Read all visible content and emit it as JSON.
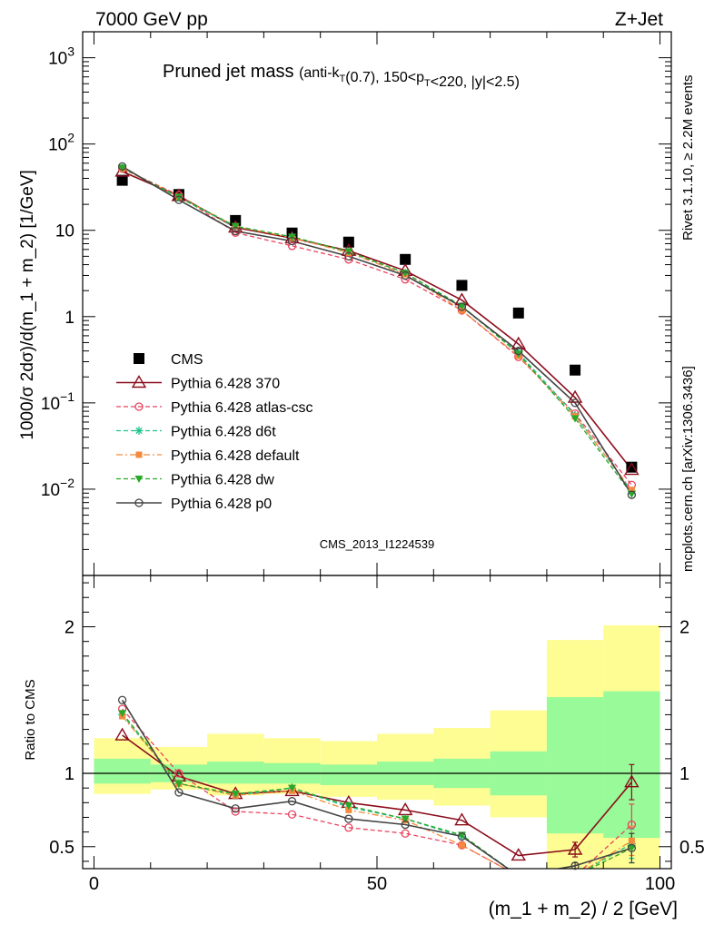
{
  "header": {
    "left": "7000 GeV pp",
    "right": "Z+Jet"
  },
  "title": {
    "main": "Pruned jet mass",
    "sub": "(anti-k_T(0.7), 150<p_T<220, |y|<2.5)"
  },
  "side_labels": {
    "rivet": "Rivet 3.1.10, ≥ 2.2M events",
    "source": "mcplots.cern.ch [arXiv:1306.3436]"
  },
  "watermark": "CMS_2013_I1224539",
  "ratio_label": "Ratio to CMS",
  "colors": {
    "cms": "#000000",
    "p370": "#8b0d1b",
    "atlas": "#e8445f",
    "d6t": "#1fc48a",
    "default": "#f58a3c",
    "dw": "#2aa82a",
    "p0": "#444444",
    "band_inner": "#98fa98",
    "band_outer": "#fdfd94"
  },
  "chart_data": [
    {
      "type": "line",
      "panel": "main",
      "xlim": [
        -2,
        102
      ],
      "ylim": [
        0.001,
        2000
      ],
      "yscale": "log",
      "ylabel": "1000/σ 2dσ)/d(m_1 + m_2) [1/GeV]",
      "yticks": [
        {
          "label": "10^3",
          "base": "10",
          "exp": "3",
          "value": 1000
        },
        {
          "label": "10^2",
          "base": "10",
          "exp": "2",
          "value": 100
        },
        {
          "label": "10",
          "value": 10
        },
        {
          "label": "1",
          "value": 1
        },
        {
          "label": "10^-1",
          "base": "10",
          "exp": "−1",
          "value": 0.1
        },
        {
          "label": "10^-2",
          "base": "10",
          "exp": "−2",
          "value": 0.01
        }
      ],
      "x": [
        5,
        15,
        25,
        35,
        45,
        55,
        65,
        75,
        85,
        95
      ],
      "legend_position": "lower-left",
      "series": [
        {
          "name": "CMS",
          "key": "cms",
          "marker": "square-filled",
          "line": "none",
          "values": [
            38,
            26,
            13,
            9.3,
            7.3,
            4.6,
            2.3,
            1.1,
            0.24,
            0.018
          ]
        },
        {
          "name": "Pythia 6.428 370",
          "key": "p370",
          "marker": "triangle-open",
          "line": "solid",
          "values": [
            48,
            25,
            10.8,
            8.1,
            5.8,
            3.4,
            1.55,
            0.48,
            0.115,
            0.0168
          ]
        },
        {
          "name": "Pythia 6.428 atlas-csc",
          "key": "atlas",
          "marker": "circle-open",
          "line": "dashed",
          "values": [
            52,
            25.5,
            9.4,
            6.6,
            4.6,
            2.7,
            1.18,
            0.34,
            0.075,
            0.0112
          ]
        },
        {
          "name": "Pythia 6.428 d6t",
          "key": "d6t",
          "marker": "star",
          "line": "dashed",
          "values": [
            53,
            24,
            11.0,
            8.4,
            5.6,
            3.2,
            1.3,
            0.38,
            0.072,
            0.0095
          ]
        },
        {
          "name": "Pythia 6.428 default",
          "key": "default",
          "marker": "square-filled-small",
          "line": "dashdot",
          "values": [
            52,
            24.5,
            11.1,
            8.2,
            5.5,
            3.1,
            1.18,
            0.35,
            0.07,
            0.0098
          ]
        },
        {
          "name": "Pythia 6.428 dw",
          "key": "dw",
          "marker": "triangle-down-filled",
          "line": "dashed",
          "values": [
            53,
            24.3,
            11.2,
            8.4,
            5.7,
            3.2,
            1.33,
            0.37,
            0.066,
            0.0088
          ]
        },
        {
          "name": "Pythia 6.428 p0",
          "key": "p0",
          "marker": "circle-open",
          "line": "solid",
          "values": [
            55,
            22.5,
            9.8,
            7.5,
            5.0,
            3.0,
            1.3,
            0.4,
            0.1,
            0.0086
          ]
        }
      ]
    },
    {
      "type": "line",
      "panel": "ratio",
      "xlabel": "(m_1 + m_2) / 2 [GeV]",
      "ylabel": "Ratio to CMS",
      "xlim": [
        -2,
        102
      ],
      "ylim": [
        0.35,
        2.35
      ],
      "xticks": [
        0,
        50,
        100
      ],
      "yticks": [
        0.5,
        1,
        2
      ],
      "reference_line": 1,
      "bands": {
        "x_edges": [
          0,
          10,
          20,
          30,
          40,
          50,
          60,
          70,
          80,
          90,
          100
        ],
        "inner": [
          [
            0.93,
            1.1
          ],
          [
            0.94,
            1.06
          ],
          [
            0.93,
            1.08
          ],
          [
            0.93,
            1.07
          ],
          [
            0.92,
            1.06
          ],
          [
            0.92,
            1.08
          ],
          [
            0.9,
            1.1
          ],
          [
            0.85,
            1.15
          ],
          [
            0.59,
            1.52
          ],
          [
            0.56,
            1.56
          ]
        ],
        "outer": [
          [
            0.86,
            1.24
          ],
          [
            0.89,
            1.18
          ],
          [
            0.85,
            1.27
          ],
          [
            0.86,
            1.24
          ],
          [
            0.84,
            1.22
          ],
          [
            0.82,
            1.27
          ],
          [
            0.78,
            1.31
          ],
          [
            0.7,
            1.43
          ],
          [
            0.3,
            1.91
          ],
          [
            0.3,
            2.01
          ]
        ]
      },
      "series": [
        {
          "name": "Pythia 6.428 370",
          "key": "p370",
          "values": [
            1.26,
            0.98,
            0.86,
            0.88,
            0.8,
            0.75,
            0.68,
            0.44,
            0.48,
            0.94
          ],
          "errors": [
            0,
            0,
            0,
            0,
            0,
            0,
            0,
            0,
            0.05,
            0.12
          ]
        },
        {
          "name": "Pythia 6.428 atlas-csc",
          "key": "atlas",
          "values": [
            1.44,
            1.0,
            0.74,
            0.72,
            0.63,
            0.59,
            0.51,
            0.3,
            0.3,
            0.65
          ],
          "errors": [
            0,
            0,
            0,
            0,
            0,
            0,
            0,
            0,
            0,
            0.14
          ]
        },
        {
          "name": "Pythia 6.428 d6t",
          "key": "d6t",
          "values": [
            1.4,
            0.93,
            0.85,
            0.9,
            0.77,
            0.69,
            0.57,
            0.3,
            0.3,
            0.52
          ],
          "errors": [
            0,
            0,
            0,
            0,
            0,
            0,
            0,
            0,
            0,
            0.1
          ]
        },
        {
          "name": "Pythia 6.428 default",
          "key": "default",
          "values": [
            1.39,
            0.93,
            0.85,
            0.88,
            0.75,
            0.68,
            0.51,
            0.3,
            0.3,
            0.54
          ],
          "errors": [
            0,
            0,
            0,
            0,
            0,
            0,
            0,
            0,
            0,
            0.1
          ]
        },
        {
          "name": "Pythia 6.428 dw",
          "key": "dw",
          "values": [
            1.41,
            0.93,
            0.86,
            0.9,
            0.78,
            0.69,
            0.58,
            0.3,
            0.3,
            0.49
          ],
          "errors": [
            0,
            0,
            0,
            0,
            0,
            0,
            0,
            0,
            0,
            0.1
          ]
        },
        {
          "name": "Pythia 6.428 p0",
          "key": "p0",
          "values": [
            1.5,
            0.87,
            0.76,
            0.81,
            0.69,
            0.65,
            0.57,
            0.3,
            0.37,
            0.49
          ],
          "errors": [
            0,
            0,
            0,
            0,
            0,
            0,
            0,
            0,
            0.02,
            0.1
          ]
        }
      ]
    }
  ]
}
